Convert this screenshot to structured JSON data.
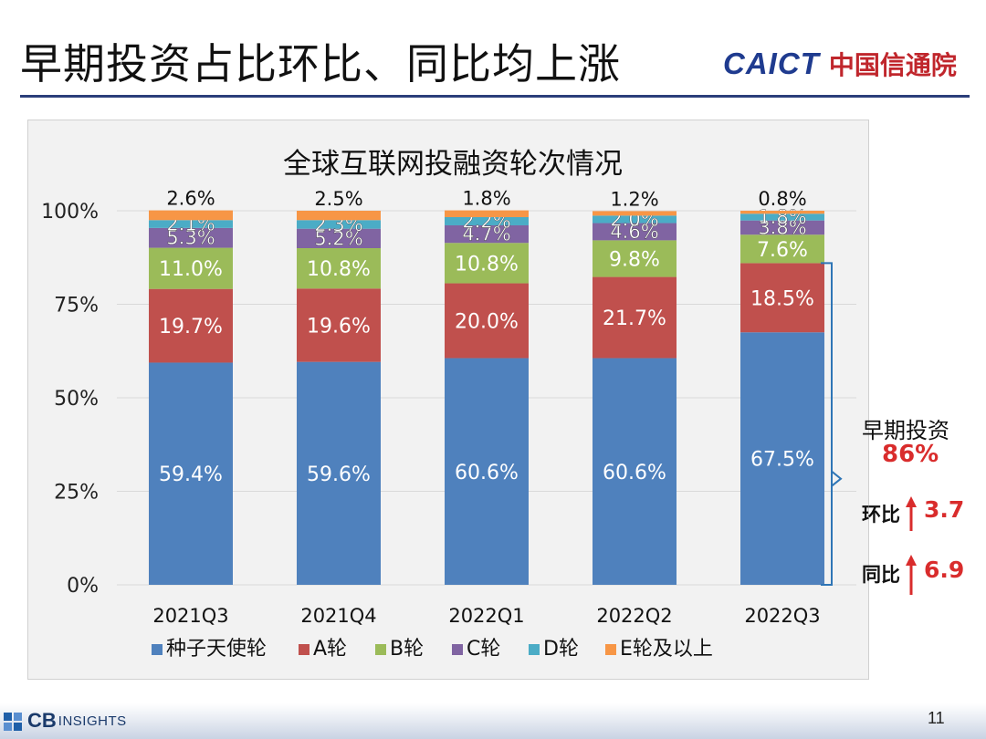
{
  "slide": {
    "title": "早期投资占比环比、同比均上涨",
    "logo_en": "CAICT",
    "logo_cn": "中国信通院",
    "page_number": "11",
    "footer_logo_main": "CB",
    "footer_logo_sub": "INSIGHTS"
  },
  "side_annotations": {
    "early_label": "早期投资",
    "early_value": "86%",
    "qoq_label": "环比",
    "qoq_value": "3.7",
    "yoy_label": "同比",
    "yoy_value": "6.9",
    "highlight_color": "#d92c2c"
  },
  "chart_data": {
    "type": "bar",
    "stacked": true,
    "percent": true,
    "title": "全球互联网投融资轮次情况",
    "categories": [
      "2021Q3",
      "2021Q4",
      "2022Q1",
      "2022Q2",
      "2022Q3"
    ],
    "y_ticks": [
      "0%",
      "25%",
      "50%",
      "75%",
      "100%"
    ],
    "ylim": [
      0,
      100
    ],
    "grid": true,
    "legend_position": "bottom",
    "series": [
      {
        "name": "种子天使轮",
        "color": "#4f81bd",
        "values": [
          59.4,
          59.6,
          60.6,
          60.6,
          67.5
        ],
        "labels": [
          "59.4%",
          "59.6%",
          "60.6%",
          "60.6%",
          "67.5%"
        ]
      },
      {
        "name": "A轮",
        "color": "#c0504d",
        "values": [
          19.7,
          19.6,
          20.0,
          21.7,
          18.5
        ],
        "labels": [
          "19.7%",
          "19.6%",
          "20.0%",
          "21.7%",
          "18.5%"
        ]
      },
      {
        "name": "B轮",
        "color": "#9bbb59",
        "values": [
          11.0,
          10.8,
          10.8,
          9.8,
          7.6
        ],
        "labels": [
          "11.0%",
          "10.8%",
          "10.8%",
          "9.8%",
          "7.6%"
        ]
      },
      {
        "name": "C轮",
        "color": "#8064a2",
        "values": [
          5.3,
          5.2,
          4.7,
          4.6,
          3.8
        ],
        "labels": [
          "5.3%",
          "5.2%",
          "4.7%",
          "4.6%",
          "3.8%"
        ]
      },
      {
        "name": "D轮",
        "color": "#4bacc6",
        "values": [
          2.1,
          2.3,
          2.2,
          2.0,
          1.8
        ],
        "labels": [
          "2.1%",
          "2.3%",
          "2.2%",
          "2.0%",
          "1.8%"
        ]
      },
      {
        "name": "E轮及以上",
        "color": "#f79646",
        "values": [
          2.6,
          2.5,
          1.8,
          1.2,
          0.8
        ],
        "labels": [
          "2.6%",
          "2.5%",
          "1.8%",
          "1.2%",
          "0.8%"
        ]
      }
    ]
  }
}
